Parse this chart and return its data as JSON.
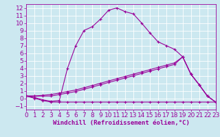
{
  "xlabel": "Windchill (Refroidissement éolien,°C)",
  "bg_color": "#cce8f0",
  "line_color": "#990099",
  "grid_color": "#ffffff",
  "xlim": [
    0,
    23
  ],
  "ylim": [
    -1.5,
    12.5
  ],
  "xticks": [
    0,
    1,
    2,
    3,
    4,
    5,
    6,
    7,
    8,
    9,
    10,
    11,
    12,
    13,
    14,
    15,
    16,
    17,
    18,
    19,
    20,
    21,
    22,
    23
  ],
  "yticks": [
    -1,
    0,
    1,
    2,
    3,
    4,
    5,
    6,
    7,
    8,
    9,
    10,
    11,
    12
  ],
  "line1_x": [
    0,
    1,
    2,
    3,
    4,
    5,
    6,
    7,
    8,
    9,
    10,
    11,
    12,
    13,
    14,
    15,
    16,
    17,
    18,
    19,
    20,
    21,
    22,
    23
  ],
  "line1_y": [
    0.3,
    0.0,
    -0.3,
    -0.5,
    -0.5,
    -0.5,
    -0.5,
    -0.5,
    -0.5,
    -0.5,
    -0.5,
    -0.5,
    -0.5,
    -0.5,
    -0.5,
    -0.5,
    -0.5,
    -0.5,
    -0.5,
    -0.5,
    -0.5,
    -0.5,
    -0.5,
    -0.5
  ],
  "line2_x": [
    0,
    1,
    2,
    3,
    4,
    5,
    6,
    7,
    8,
    9,
    10,
    11,
    12,
    13,
    14,
    15,
    16,
    17,
    18,
    19,
    20,
    21,
    22,
    23
  ],
  "line2_y": [
    0.3,
    0.1,
    -0.2,
    -0.4,
    -0.3,
    4.0,
    7.0,
    9.0,
    9.5,
    10.5,
    11.7,
    12.0,
    11.5,
    11.2,
    10.0,
    8.7,
    7.5,
    7.0,
    6.5,
    5.5,
    3.2,
    1.8,
    0.3,
    -0.5
  ],
  "line3_x": [
    0,
    1,
    2,
    3,
    4,
    5,
    6,
    7,
    8,
    9,
    10,
    11,
    12,
    13,
    14,
    15,
    16,
    17,
    18,
    19,
    20,
    21,
    22,
    23
  ],
  "line3_y": [
    0.3,
    0.3,
    0.4,
    0.5,
    0.7,
    0.9,
    1.1,
    1.4,
    1.7,
    2.0,
    2.3,
    2.6,
    2.9,
    3.2,
    3.5,
    3.8,
    4.1,
    4.4,
    4.7,
    5.5,
    3.2,
    1.8,
    0.3,
    -0.5
  ],
  "line4_x": [
    0,
    1,
    2,
    3,
    4,
    5,
    6,
    7,
    8,
    9,
    10,
    11,
    12,
    13,
    14,
    15,
    16,
    17,
    18,
    19,
    20,
    21,
    22,
    23
  ],
  "line4_y": [
    0.3,
    0.3,
    0.3,
    0.3,
    0.5,
    0.7,
    0.9,
    1.2,
    1.5,
    1.8,
    2.1,
    2.4,
    2.7,
    3.0,
    3.3,
    3.6,
    3.9,
    4.2,
    4.5,
    5.5,
    3.2,
    1.8,
    0.3,
    -0.5
  ],
  "font_size": 6.5
}
